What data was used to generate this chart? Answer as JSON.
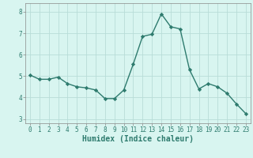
{
  "x": [
    0,
    1,
    2,
    3,
    4,
    5,
    6,
    7,
    8,
    9,
    10,
    11,
    12,
    13,
    14,
    15,
    16,
    17,
    18,
    19,
    20,
    21,
    22,
    23
  ],
  "y": [
    5.05,
    4.85,
    4.85,
    4.95,
    4.65,
    4.5,
    4.45,
    4.35,
    3.95,
    3.95,
    4.35,
    5.55,
    6.85,
    6.95,
    7.9,
    7.3,
    7.2,
    5.3,
    4.4,
    4.65,
    4.5,
    4.2,
    3.7,
    3.25
  ],
  "line_color": "#2e7b6e",
  "marker": "D",
  "marker_size": 2.2,
  "line_width": 1.0,
  "bg_color": "#d8f5f0",
  "grid_color": "#b8ddd8",
  "xlabel": "Humidex (Indice chaleur)",
  "xlim": [
    -0.5,
    23.5
  ],
  "ylim": [
    2.8,
    8.4
  ],
  "yticks": [
    3,
    4,
    5,
    6,
    7,
    8
  ],
  "xticks": [
    0,
    1,
    2,
    3,
    4,
    5,
    6,
    7,
    8,
    9,
    10,
    11,
    12,
    13,
    14,
    15,
    16,
    17,
    18,
    19,
    20,
    21,
    22,
    23
  ],
  "tick_fontsize": 5.5,
  "xlabel_fontsize": 7.0,
  "grid_lw": 0.6,
  "spine_color": "#888888"
}
